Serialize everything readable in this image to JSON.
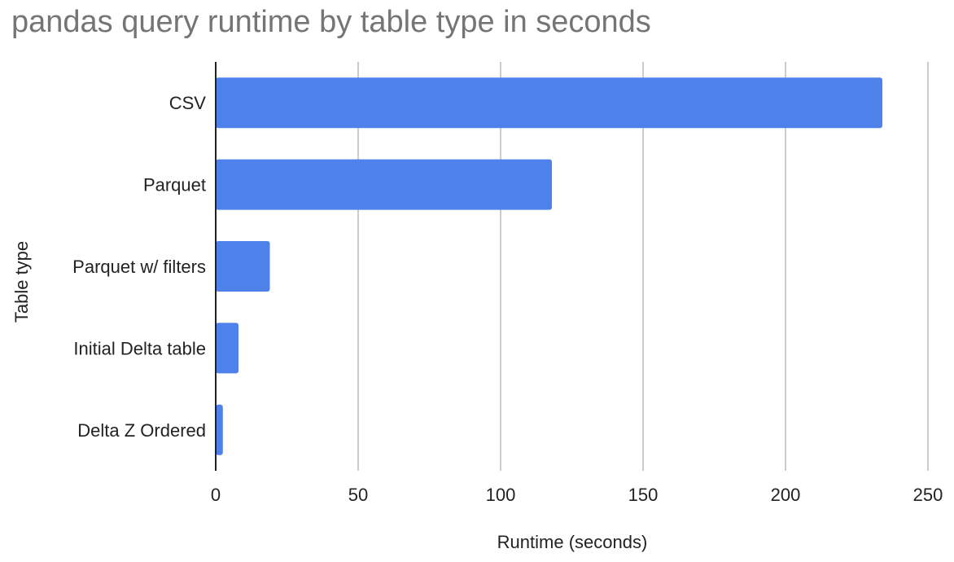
{
  "chart_data": {
    "type": "bar",
    "orientation": "horizontal",
    "title": "pandas query runtime by table type in seconds",
    "xlabel": "Runtime (seconds)",
    "ylabel": "Table type",
    "categories": [
      "CSV",
      "Parquet",
      "Parquet w/ filters",
      "Initial Delta table",
      "Delta Z Ordered"
    ],
    "values": [
      234,
      118,
      19,
      8,
      2.5
    ],
    "xlim": [
      0,
      250
    ],
    "xticks": [
      "0",
      "50",
      "100",
      "150",
      "200",
      "250"
    ],
    "grid": "vertical",
    "legend": "none",
    "colors": {
      "bar": "#4f81eb",
      "grid": "#cccccc",
      "axis": "#222222",
      "title": "#757575"
    }
  }
}
